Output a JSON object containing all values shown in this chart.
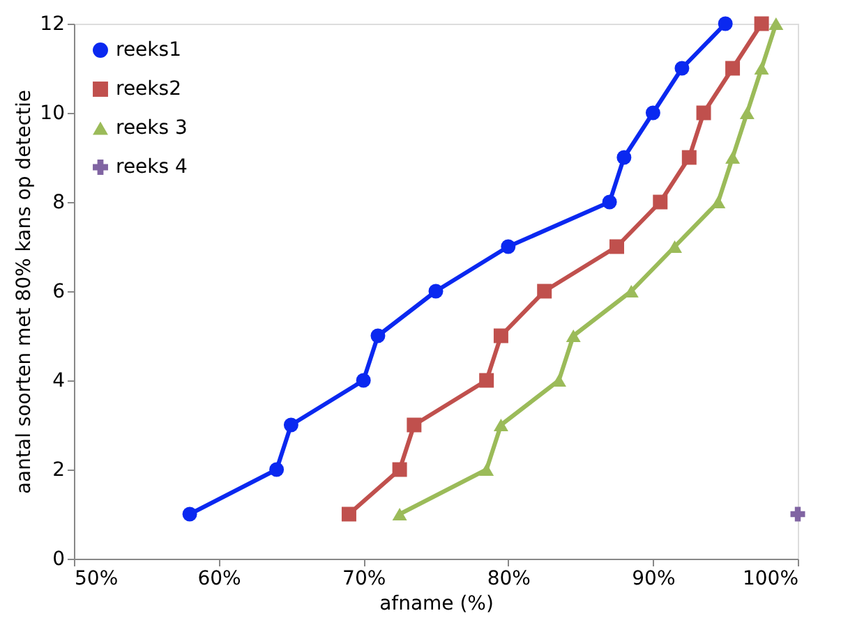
{
  "chart_data": {
    "type": "line",
    "xlabel": "afname (%)",
    "ylabel": "aantal soorten met 80% kans op detectie",
    "xlim": [
      50,
      100
    ],
    "xticks": [
      {
        "value": 50,
        "label": "50%"
      },
      {
        "value": 60,
        "label": "60%"
      },
      {
        "value": 70,
        "label": "70%"
      },
      {
        "value": 80,
        "label": "80%"
      },
      {
        "value": 90,
        "label": "90%"
      },
      {
        "value": 100,
        "label": "100%"
      }
    ],
    "ylim": [
      0,
      12
    ],
    "yticks": [
      0,
      2,
      4,
      6,
      8,
      10,
      12
    ],
    "grid": false,
    "legend": "top left",
    "series": [
      {
        "name": "reeks1",
        "color": "#0a28f0",
        "marker": "circle",
        "x": [
          58,
          64,
          65,
          70,
          71,
          75,
          80,
          87,
          88,
          90,
          92,
          95
        ],
        "values": [
          1,
          2,
          3,
          4,
          5,
          6,
          7,
          8,
          9,
          10,
          11,
          12
        ]
      },
      {
        "name": "reeks2",
        "color": "#c0504d",
        "marker": "square",
        "x": [
          69,
          72.5,
          73.5,
          78.5,
          79.5,
          82.5,
          87.5,
          90.5,
          92.5,
          93.5,
          95.5,
          97.5
        ],
        "values": [
          1,
          2,
          3,
          4,
          5,
          6,
          7,
          8,
          9,
          10,
          11,
          12
        ]
      },
      {
        "name": "reeks 3",
        "color": "#9bbb59",
        "marker": "triangle",
        "x": [
          72.5,
          78.5,
          79.5,
          83.5,
          84.5,
          88.5,
          91.5,
          94.5,
          95.5,
          96.5,
          97.5,
          98.5
        ],
        "values": [
          1,
          2,
          3,
          4,
          5,
          6,
          7,
          8,
          9,
          10,
          11,
          12
        ]
      },
      {
        "name": "reeks 4",
        "type": "scatter",
        "color": "#8064a2",
        "marker": "cross",
        "x": [
          100
        ],
        "values": [
          1
        ]
      }
    ]
  }
}
